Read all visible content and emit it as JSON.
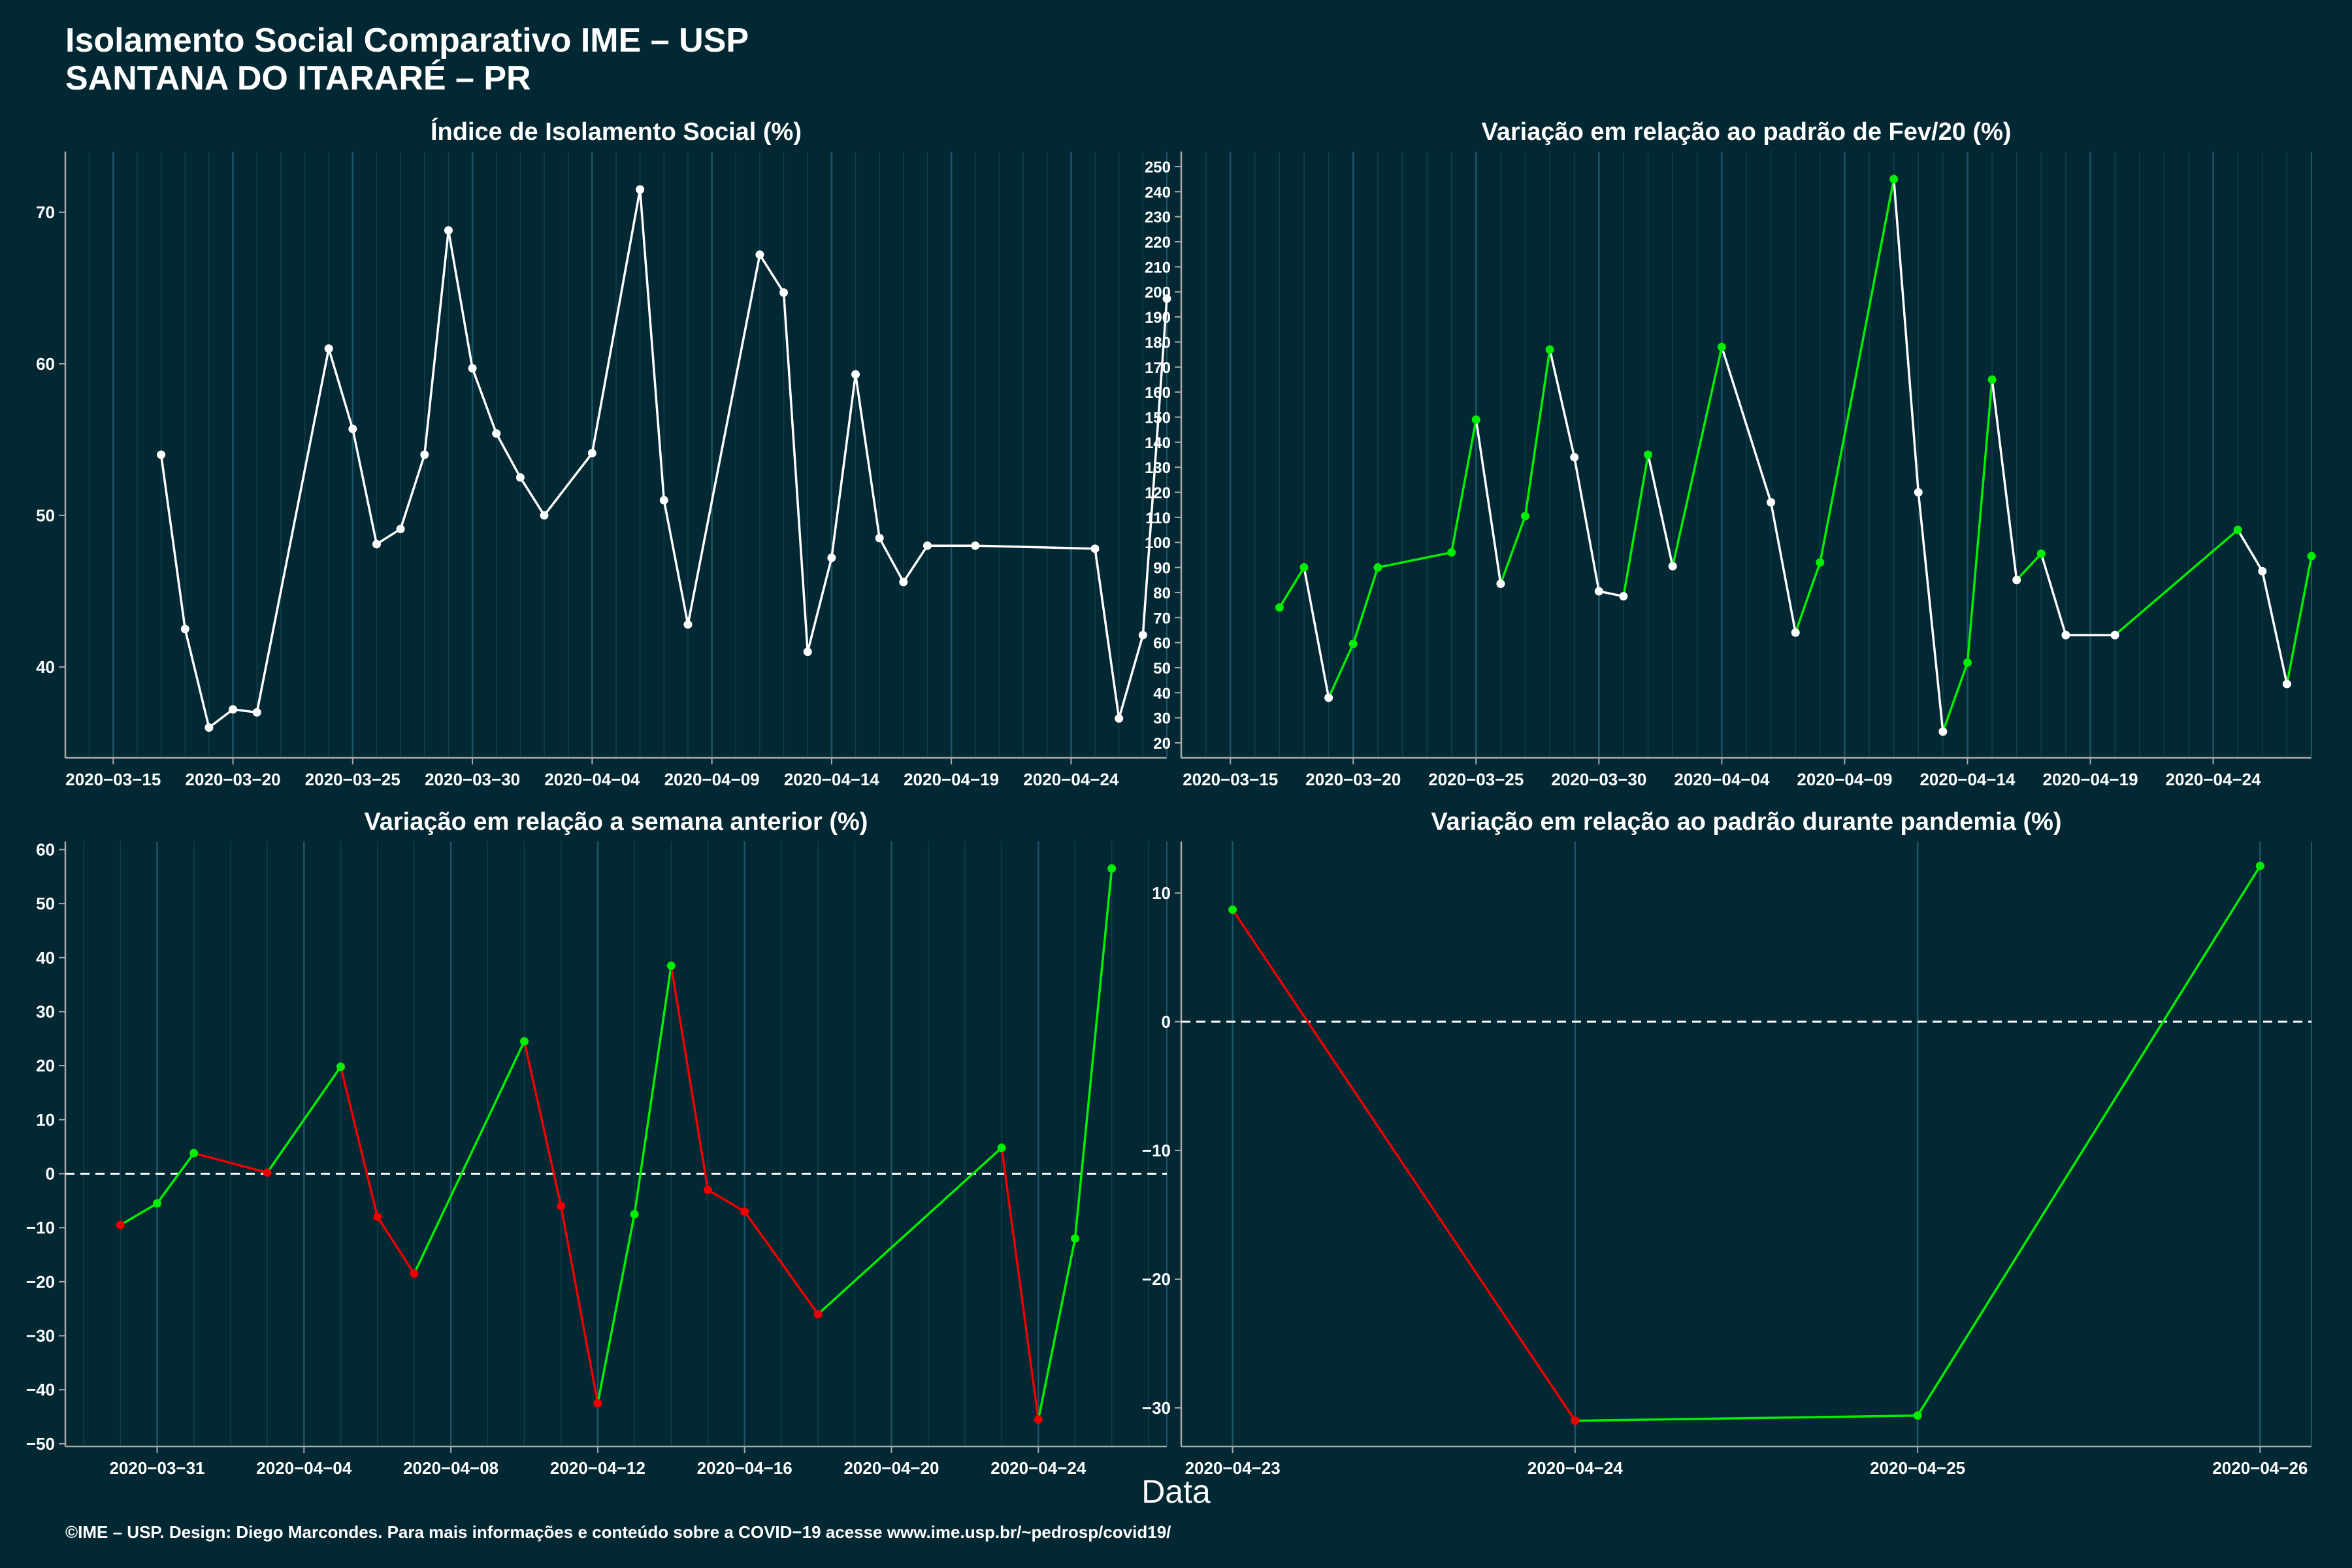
{
  "header": {
    "title": "Isolamento Social Comparativo IME – USP",
    "subtitle": "SANTANA DO ITARARÉ – PR"
  },
  "xlabel": "Data",
  "caption": "©IME – USP. Design: Diego Marcondes. Para mais informações e conteúdo sobre a COVID−19 acesse www.ime.usp.br/~pedrosp/covid19/",
  "colors": {
    "background": "#022833",
    "line": "#ffffff",
    "increase": "#00ee00",
    "decrease": "#ee0000",
    "axis": "#aaaaaa"
  },
  "chart_data": [
    {
      "type": "line",
      "title": "Índice de Isolamento Social (%)",
      "xlabel": "",
      "ylabel": "",
      "grid": true,
      "coloring": "none",
      "x_ticks": [
        "2020-03-15",
        "2020-03-20",
        "2020-03-25",
        "2020-03-30",
        "2020-04-04",
        "2020-04-09",
        "2020-04-14",
        "2020-04-19",
        "2020-04-24"
      ],
      "y_ticks": [
        40,
        50,
        60,
        70
      ],
      "xlim": [
        "2020-03-13",
        "2020-04-28"
      ],
      "ylim": [
        34,
        74
      ],
      "x": [
        "2020-03-17",
        "2020-03-18",
        "2020-03-19",
        "2020-03-20",
        "2020-03-21",
        "2020-03-24",
        "2020-03-25",
        "2020-03-26",
        "2020-03-27",
        "2020-03-28",
        "2020-03-29",
        "2020-03-30",
        "2020-03-31",
        "2020-04-01",
        "2020-04-02",
        "2020-04-04",
        "2020-04-06",
        "2020-04-07",
        "2020-04-08",
        "2020-04-11",
        "2020-04-12",
        "2020-04-13",
        "2020-04-14",
        "2020-04-15",
        "2020-04-16",
        "2020-04-17",
        "2020-04-18",
        "2020-04-20",
        "2020-04-25",
        "2020-04-26",
        "2020-04-27",
        "2020-04-28"
      ],
      "y": [
        54,
        42.5,
        36,
        37.2,
        37,
        61,
        55.7,
        48.1,
        49.1,
        54,
        68.8,
        59.7,
        55.4,
        52.5,
        50,
        54.1,
        71.5,
        51,
        42.8,
        67.2,
        64.7,
        41,
        47.2,
        59.3,
        48.5,
        45.6,
        48,
        48,
        47.8,
        36.6,
        42.1,
        64.3
      ]
    },
    {
      "type": "line",
      "title": "Variação em relação ao padrão de Fev/20 (%)",
      "xlabel": "",
      "ylabel": "",
      "grid": true,
      "coloring": "increase-green",
      "x_ticks": [
        "2020-03-15",
        "2020-03-20",
        "2020-03-25",
        "2020-03-30",
        "2020-04-04",
        "2020-04-09",
        "2020-04-14",
        "2020-04-19",
        "2020-04-24"
      ],
      "y_ticks": [
        20,
        30,
        40,
        50,
        60,
        70,
        80,
        90,
        100,
        110,
        120,
        130,
        140,
        150,
        160,
        170,
        180,
        190,
        200,
        210,
        220,
        230,
        240,
        250
      ],
      "xlim": [
        "2020-03-13",
        "2020-04-28"
      ],
      "ylim": [
        14,
        256
      ],
      "x": [
        "2020-03-17",
        "2020-03-18",
        "2020-03-19",
        "2020-03-20",
        "2020-03-21",
        "2020-03-24",
        "2020-03-25",
        "2020-03-26",
        "2020-03-27",
        "2020-03-28",
        "2020-03-29",
        "2020-03-30",
        "2020-03-31",
        "2020-04-01",
        "2020-04-02",
        "2020-04-04",
        "2020-04-06",
        "2020-04-07",
        "2020-04-08",
        "2020-04-11",
        "2020-04-12",
        "2020-04-13",
        "2020-04-14",
        "2020-04-15",
        "2020-04-16",
        "2020-04-17",
        "2020-04-18",
        "2020-04-20",
        "2020-04-25",
        "2020-04-26",
        "2020-04-27",
        "2020-04-28"
      ],
      "y": [
        74,
        90,
        38,
        59.5,
        90,
        96,
        149,
        83.5,
        110.5,
        177,
        134,
        80.5,
        78.5,
        135,
        90.5,
        178,
        116,
        64,
        92,
        245,
        120,
        24.5,
        52,
        165,
        85,
        95.5,
        63,
        63,
        105,
        88.5,
        43.5,
        94.5
      ]
    },
    {
      "type": "line",
      "title": "Variação em relação a semana anterior (%)",
      "xlabel": "",
      "ylabel": "",
      "grid": true,
      "coloring": "both",
      "zero_line": true,
      "x_ticks": [
        "2020-03-31",
        "2020-04-04",
        "2020-04-08",
        "2020-04-12",
        "2020-04-16",
        "2020-04-20",
        "2020-04-24"
      ],
      "y_ticks": [
        -50,
        -40,
        -30,
        -20,
        -10,
        0,
        10,
        20,
        30,
        40,
        50,
        60
      ],
      "xlim": [
        "2020-03-28.5",
        "2020-04-27.5"
      ],
      "ylim": [
        -50.5,
        61.5
      ],
      "x": [
        "2020-03-30",
        "2020-03-31",
        "2020-04-01",
        "2020-04-03",
        "2020-04-05",
        "2020-04-06",
        "2020-04-07",
        "2020-04-10",
        "2020-04-11",
        "2020-04-12",
        "2020-04-13",
        "2020-04-14",
        "2020-04-15",
        "2020-04-16",
        "2020-04-18",
        "2020-04-23",
        "2020-04-24",
        "2020-04-25",
        "2020-04-26"
      ],
      "y": [
        -9.5,
        -5.5,
        3.8,
        0.2,
        19.8,
        -8,
        -18.5,
        24.5,
        -6,
        -42.5,
        -7.5,
        38.5,
        -3,
        -7,
        -26,
        4.8,
        -45.5,
        -12,
        56.5
      ]
    },
    {
      "type": "line",
      "title": "Variação em relação ao padrão durante pandemia (%)",
      "xlabel": "",
      "ylabel": "",
      "grid": true,
      "coloring": "both",
      "zero_line": true,
      "x_ticks": [
        "2020-04-23",
        "2020-04-24",
        "2020-04-25",
        "2020-04-26"
      ],
      "y_ticks": [
        -30,
        -20,
        -10,
        0,
        10
      ],
      "xlim": [
        "2020-04-22.85",
        "2020-04-26.15"
      ],
      "ylim": [
        -33,
        14
      ],
      "x": [
        "2020-04-23",
        "2020-04-24",
        "2020-04-25",
        "2020-04-26"
      ],
      "y": [
        8.7,
        -31,
        -30.6,
        12.1
      ]
    }
  ]
}
